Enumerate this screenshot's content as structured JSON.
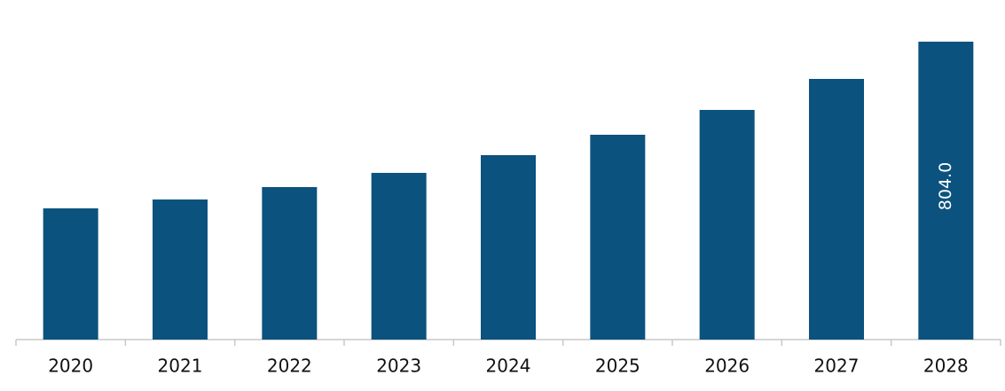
{
  "chart_data": {
    "type": "bar",
    "categories": [
      "2020",
      "2021",
      "2022",
      "2023",
      "2024",
      "2025",
      "2026",
      "2027",
      "2028"
    ],
    "values": [
      354.1,
      378.1,
      411.6,
      449.9,
      497.7,
      552.8,
      619.8,
      703.5,
      804.0
    ],
    "value_labels": [
      null,
      null,
      null,
      null,
      null,
      null,
      null,
      null,
      "804.0"
    ],
    "color": "#0b527e"
  }
}
